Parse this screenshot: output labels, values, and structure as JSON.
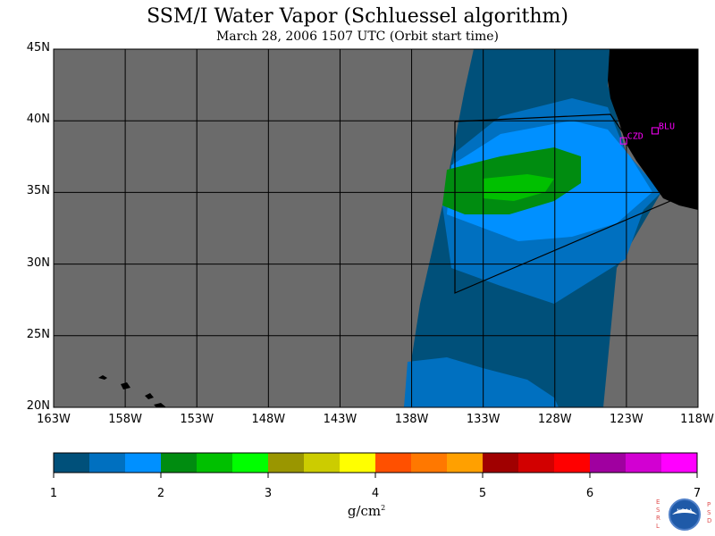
{
  "title": "SSM/I Water Vapor (Schluessel algorithm)",
  "subtitle": "March 28, 2006  1507 UTC  (Orbit start time)",
  "map": {
    "lat_labels": [
      "45N",
      "40N",
      "35N",
      "30N",
      "25N",
      "20N"
    ],
    "lon_labels": [
      "163W",
      "158W",
      "153W",
      "148W",
      "143W",
      "138W",
      "133W",
      "128W",
      "123W",
      "118W"
    ],
    "stations": [
      {
        "id": "CZD",
        "lat": 38.6,
        "lon": -123.2
      },
      {
        "id": "BLU",
        "lat": 39.3,
        "lon": -121.0
      }
    ],
    "colors": {
      "no_data": "#6b6b6b",
      "land": "#000000",
      "station": "#ff00ff"
    }
  },
  "colorbar": {
    "colors": [
      "#00507a",
      "#0070c0",
      "#0090ff",
      "#008c10",
      "#00c000",
      "#00ff00",
      "#9a9600",
      "#cccc00",
      "#ffff00",
      "#ff5000",
      "#ff7800",
      "#ffa000",
      "#a00000",
      "#d20000",
      "#ff0000",
      "#a000a0",
      "#d200d2",
      "#ff00ff"
    ],
    "ticks": [
      "1",
      "2",
      "3",
      "4",
      "5",
      "6",
      "7"
    ],
    "unit": "g/cm",
    "unit_sup": "2"
  },
  "logo": {
    "left_text": "ESRL",
    "right_text": "PSD",
    "center_text": "NOAA"
  }
}
